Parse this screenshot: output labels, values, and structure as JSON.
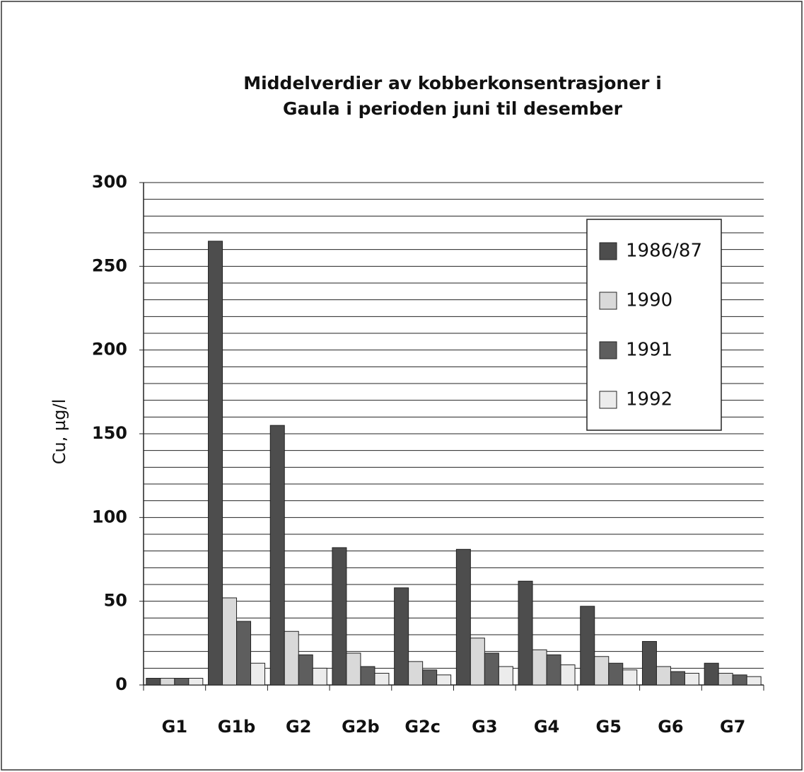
{
  "chart_data": {
    "type": "bar",
    "title": "Middelverdier av kobberkonsentrasjoner i Gaula i perioden juni til desember",
    "y_label": "Cu, µg/l",
    "categories": [
      "G1",
      "G1b",
      "G2",
      "G2b",
      "G2c",
      "G3",
      "G4",
      "G5",
      "G6",
      "G7"
    ],
    "series": [
      {
        "name": "1986/87",
        "color": "#4d4d4d",
        "values": [
          4,
          265,
          155,
          82,
          58,
          81,
          62,
          47,
          26,
          13
        ]
      },
      {
        "name": "1990",
        "color": "#d9d9d9",
        "values": [
          4,
          52,
          32,
          19,
          14,
          28,
          21,
          17,
          11,
          7
        ]
      },
      {
        "name": "1991",
        "color": "#5e5e5e",
        "values": [
          4,
          38,
          18,
          11,
          9,
          19,
          18,
          13,
          8,
          6
        ]
      },
      {
        "name": "1992",
        "color": "#ececec",
        "values": [
          4,
          13,
          10,
          7,
          6,
          11,
          12,
          9,
          7,
          5
        ]
      }
    ],
    "ylim": [
      0,
      300
    ],
    "yticks": [
      0,
      50,
      100,
      150,
      200,
      250,
      300
    ],
    "minor_yticks": [
      10,
      20,
      30,
      40,
      60,
      70,
      80,
      90,
      110,
      120,
      130,
      140,
      160,
      170,
      180,
      190,
      210,
      220,
      230,
      240,
      260,
      270,
      280,
      290
    ],
    "grid": true,
    "legend": "upper right"
  }
}
